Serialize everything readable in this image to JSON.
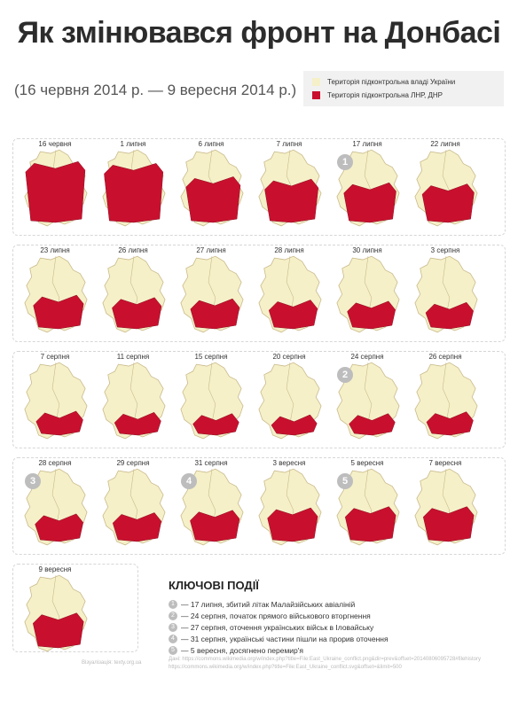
{
  "title": "Як змінювався фронт на Донбасі",
  "subtitle": "(16 червня 2014 р. — 9 вересня 2014 р.)",
  "legend": [
    {
      "label": "Територія підконтрольна владі України",
      "color": "#f5f0c8"
    },
    {
      "label": "Територія підконтрольна ЛНР, ДНР",
      "color": "#c8102e"
    }
  ],
  "colors": {
    "ukraine": "#f5f0c8",
    "separatist": "#c8102e",
    "border": "#c9b98a"
  },
  "maps": [
    {
      "date": "16 червня",
      "extent": 0.95
    },
    {
      "date": "1 липня",
      "extent": 0.92,
      "badge": ""
    },
    {
      "date": "6 липня",
      "extent": 0.7
    },
    {
      "date": "7 липня",
      "extent": 0.66
    },
    {
      "date": "17 липня",
      "extent": 0.6,
      "badge": "1"
    },
    {
      "date": "22 липня",
      "extent": 0.58
    },
    {
      "date": "23 липня",
      "extent": 0.5
    },
    {
      "date": "26 липня",
      "extent": 0.46
    },
    {
      "date": "27 липня",
      "extent": 0.44
    },
    {
      "date": "28 липня",
      "extent": 0.42
    },
    {
      "date": "30 липня",
      "extent": 0.4
    },
    {
      "date": "3 серпня",
      "extent": 0.38
    },
    {
      "date": "7 серпня",
      "extent": 0.34
    },
    {
      "date": "11 серпня",
      "extent": 0.32
    },
    {
      "date": "15 серпня",
      "extent": 0.3
    },
    {
      "date": "20 серпня",
      "extent": 0.28
    },
    {
      "date": "24 серпня",
      "extent": 0.3,
      "badge": "2"
    },
    {
      "date": "26 серпня",
      "extent": 0.33
    },
    {
      "date": "28 серпня",
      "extent": 0.4,
      "badge": "3"
    },
    {
      "date": "29 серпня",
      "extent": 0.42
    },
    {
      "date": "31 серпня",
      "extent": 0.46,
      "badge": "4"
    },
    {
      "date": "3 вересня",
      "extent": 0.5
    },
    {
      "date": "5 вересня",
      "extent": 0.52,
      "badge": "5"
    },
    {
      "date": "7 вересня",
      "extent": 0.52
    },
    {
      "date": "9 вересня",
      "extent": 0.52
    }
  ],
  "events_title": "КЛЮЧОВІ ПОДІЇ",
  "events": [
    {
      "num": "1",
      "text": "— 17 липня, збитий літак Малайзійських авіаліній"
    },
    {
      "num": "2",
      "text": "— 24 серпня, початок прямого військового вторгнення"
    },
    {
      "num": "3",
      "text": "— 27 серпня, оточення українських військ в Іловайську"
    },
    {
      "num": "4",
      "text": "— 31 серпня, українські частини пішли на прорив оточення"
    },
    {
      "num": "5",
      "text": "— 5 вересня, досягнено перемир'я"
    }
  ],
  "footer_left": "Візуалізація: texty.org.ua",
  "footer_right": "Дані: https://commons.wikimedia.org/w/index.php?title=File:East_Ukraine_conflict.png&dir=prev&offset=20140806095728#filehistory https://commons.wikimedia.org/w/index.php?title=File:East_Ukraine_conflict.svg&offset=&limit=500"
}
